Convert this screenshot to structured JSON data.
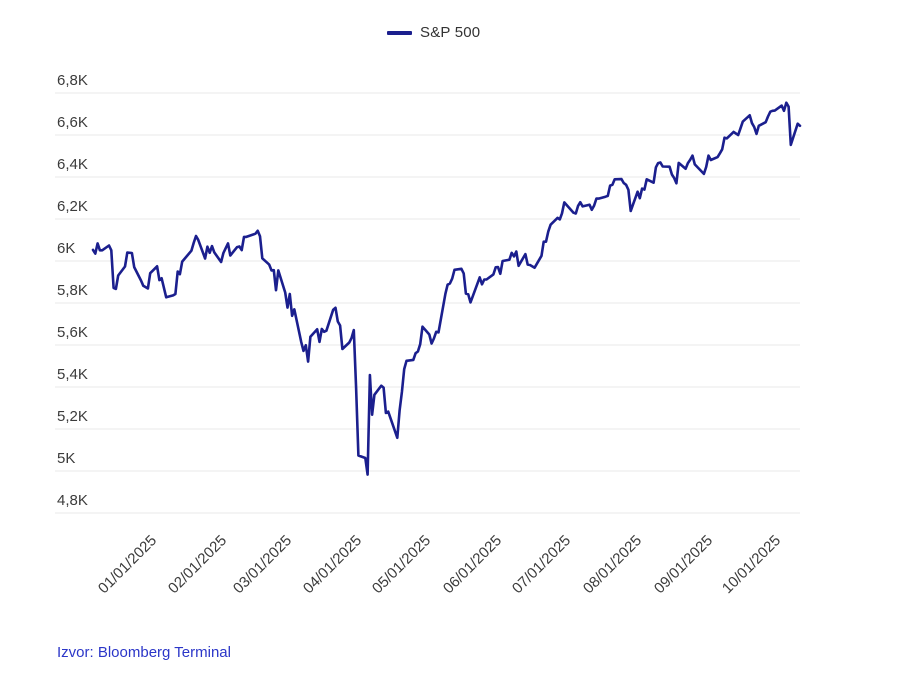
{
  "legend": {
    "label": "S&P 500",
    "line_color": "#1b1f8e"
  },
  "footer": {
    "source_text": "Izvor: Bloomberg Terminal",
    "color": "#2b36c8"
  },
  "colors": {
    "background": "#ffffff",
    "gridline": "#e8e8e8",
    "axis_text": "#3b3b3b"
  },
  "chart_data": {
    "type": "line",
    "title": "",
    "xlabel": "",
    "ylabel": "",
    "grid": "horizontal",
    "legend_position": "top-center",
    "ylim": [
      4800,
      6800
    ],
    "xlim": [
      "2024-12-09",
      "2025-10-14"
    ],
    "y_ticks": [
      {
        "label": "6,8K",
        "value": 6800
      },
      {
        "label": "6,6K",
        "value": 6600
      },
      {
        "label": "6,4K",
        "value": 6400
      },
      {
        "label": "6,2K",
        "value": 6200
      },
      {
        "label": "6K",
        "value": 6000
      },
      {
        "label": "5,8K",
        "value": 5800
      },
      {
        "label": "5,6K",
        "value": 5600
      },
      {
        "label": "5,4K",
        "value": 5400
      },
      {
        "label": "5,2K",
        "value": 5200
      },
      {
        "label": "5K",
        "value": 5000
      },
      {
        "label": "4,8K",
        "value": 4800
      }
    ],
    "x_ticks": [
      {
        "label": "01/01/2025",
        "date": "2025-01-01"
      },
      {
        "label": "02/01/2025",
        "date": "2025-02-01"
      },
      {
        "label": "03/01/2025",
        "date": "2025-03-01"
      },
      {
        "label": "04/01/2025",
        "date": "2025-04-01"
      },
      {
        "label": "05/01/2025",
        "date": "2025-05-01"
      },
      {
        "label": "06/01/2025",
        "date": "2025-06-01"
      },
      {
        "label": "07/01/2025",
        "date": "2025-07-01"
      },
      {
        "label": "08/01/2025",
        "date": "2025-08-01"
      },
      {
        "label": "09/01/2025",
        "date": "2025-09-01"
      },
      {
        "label": "10/01/2025",
        "date": "2025-10-01"
      }
    ],
    "series": [
      {
        "name": "S&P 500",
        "color": "#1b1f8e",
        "points": [
          [
            "2024-12-09",
            6053
          ],
          [
            "2024-12-10",
            6035
          ],
          [
            "2024-12-11",
            6084
          ],
          [
            "2024-12-12",
            6051
          ],
          [
            "2024-12-13",
            6051
          ],
          [
            "2024-12-16",
            6074
          ],
          [
            "2024-12-17",
            6051
          ],
          [
            "2024-12-18",
            5872
          ],
          [
            "2024-12-19",
            5867
          ],
          [
            "2024-12-20",
            5931
          ],
          [
            "2024-12-23",
            5974
          ],
          [
            "2024-12-24",
            6040
          ],
          [
            "2024-12-26",
            6038
          ],
          [
            "2024-12-27",
            5971
          ],
          [
            "2024-12-30",
            5907
          ],
          [
            "2024-12-31",
            5882
          ],
          [
            "2025-01-02",
            5869
          ],
          [
            "2025-01-03",
            5942
          ],
          [
            "2025-01-06",
            5975
          ],
          [
            "2025-01-07",
            5909
          ],
          [
            "2025-01-08",
            5918
          ],
          [
            "2025-01-10",
            5827
          ],
          [
            "2025-01-13",
            5836
          ],
          [
            "2025-01-14",
            5843
          ],
          [
            "2025-01-15",
            5950
          ],
          [
            "2025-01-16",
            5937
          ],
          [
            "2025-01-17",
            5997
          ],
          [
            "2025-01-21",
            6049
          ],
          [
            "2025-01-22",
            6086
          ],
          [
            "2025-01-23",
            6119
          ],
          [
            "2025-01-24",
            6101
          ],
          [
            "2025-01-27",
            6012
          ],
          [
            "2025-01-28",
            6068
          ],
          [
            "2025-01-29",
            6039
          ],
          [
            "2025-01-30",
            6071
          ],
          [
            "2025-01-31",
            6041
          ],
          [
            "2025-02-03",
            5995
          ],
          [
            "2025-02-04",
            6038
          ],
          [
            "2025-02-05",
            6061
          ],
          [
            "2025-02-06",
            6084
          ],
          [
            "2025-02-07",
            6026
          ],
          [
            "2025-02-10",
            6066
          ],
          [
            "2025-02-11",
            6069
          ],
          [
            "2025-02-12",
            6052
          ],
          [
            "2025-02-13",
            6115
          ],
          [
            "2025-02-14",
            6115
          ],
          [
            "2025-02-18",
            6130
          ],
          [
            "2025-02-19",
            6144
          ],
          [
            "2025-02-20",
            6118
          ],
          [
            "2025-02-21",
            6013
          ],
          [
            "2025-02-24",
            5983
          ],
          [
            "2025-02-25",
            5955
          ],
          [
            "2025-02-26",
            5956
          ],
          [
            "2025-02-27",
            5861
          ],
          [
            "2025-02-28",
            5955
          ],
          [
            "2025-03-03",
            5850
          ],
          [
            "2025-03-04",
            5778
          ],
          [
            "2025-03-05",
            5843
          ],
          [
            "2025-03-06",
            5739
          ],
          [
            "2025-03-07",
            5770
          ],
          [
            "2025-03-10",
            5615
          ],
          [
            "2025-03-11",
            5572
          ],
          [
            "2025-03-12",
            5599
          ],
          [
            "2025-03-13",
            5521
          ],
          [
            "2025-03-14",
            5639
          ],
          [
            "2025-03-17",
            5675
          ],
          [
            "2025-03-18",
            5615
          ],
          [
            "2025-03-19",
            5676
          ],
          [
            "2025-03-20",
            5663
          ],
          [
            "2025-03-21",
            5668
          ],
          [
            "2025-03-24",
            5768
          ],
          [
            "2025-03-25",
            5777
          ],
          [
            "2025-03-26",
            5712
          ],
          [
            "2025-03-27",
            5693
          ],
          [
            "2025-03-28",
            5581
          ],
          [
            "2025-03-31",
            5612
          ],
          [
            "2025-04-01",
            5633
          ],
          [
            "2025-04-02",
            5671
          ],
          [
            "2025-04-03",
            5396
          ],
          [
            "2025-04-04",
            5074
          ],
          [
            "2025-04-07",
            5062
          ],
          [
            "2025-04-08",
            4983
          ],
          [
            "2025-04-09",
            5457
          ],
          [
            "2025-04-10",
            5268
          ],
          [
            "2025-04-11",
            5363
          ],
          [
            "2025-04-14",
            5406
          ],
          [
            "2025-04-15",
            5397
          ],
          [
            "2025-04-16",
            5276
          ],
          [
            "2025-04-17",
            5283
          ],
          [
            "2025-04-21",
            5158
          ],
          [
            "2025-04-22",
            5288
          ],
          [
            "2025-04-23",
            5376
          ],
          [
            "2025-04-24",
            5485
          ],
          [
            "2025-04-25",
            5525
          ],
          [
            "2025-04-28",
            5529
          ],
          [
            "2025-04-29",
            5561
          ],
          [
            "2025-04-30",
            5569
          ],
          [
            "2025-05-01",
            5604
          ],
          [
            "2025-05-02",
            5687
          ],
          [
            "2025-05-05",
            5650
          ],
          [
            "2025-05-06",
            5607
          ],
          [
            "2025-05-07",
            5631
          ],
          [
            "2025-05-08",
            5663
          ],
          [
            "2025-05-09",
            5660
          ],
          [
            "2025-05-12",
            5844
          ],
          [
            "2025-05-13",
            5887
          ],
          [
            "2025-05-14",
            5893
          ],
          [
            "2025-05-15",
            5916
          ],
          [
            "2025-05-16",
            5958
          ],
          [
            "2025-05-19",
            5963
          ],
          [
            "2025-05-20",
            5941
          ],
          [
            "2025-05-21",
            5845
          ],
          [
            "2025-05-22",
            5842
          ],
          [
            "2025-05-23",
            5803
          ],
          [
            "2025-05-27",
            5922
          ],
          [
            "2025-05-28",
            5889
          ],
          [
            "2025-05-29",
            5912
          ],
          [
            "2025-05-30",
            5912
          ],
          [
            "2025-06-02",
            5936
          ],
          [
            "2025-06-03",
            5970
          ],
          [
            "2025-06-04",
            5971
          ],
          [
            "2025-06-05",
            5939
          ],
          [
            "2025-06-06",
            6000
          ],
          [
            "2025-06-09",
            6006
          ],
          [
            "2025-06-10",
            6039
          ],
          [
            "2025-06-11",
            6022
          ],
          [
            "2025-06-12",
            6045
          ],
          [
            "2025-06-13",
            5977
          ],
          [
            "2025-06-16",
            6033
          ],
          [
            "2025-06-17",
            5983
          ],
          [
            "2025-06-18",
            5981
          ],
          [
            "2025-06-20",
            5968
          ],
          [
            "2025-06-23",
            6025
          ],
          [
            "2025-06-24",
            6092
          ],
          [
            "2025-06-25",
            6092
          ],
          [
            "2025-06-26",
            6141
          ],
          [
            "2025-06-27",
            6173
          ],
          [
            "2025-06-30",
            6205
          ],
          [
            "2025-07-01",
            6198
          ],
          [
            "2025-07-02",
            6227
          ],
          [
            "2025-07-03",
            6279
          ],
          [
            "2025-07-07",
            6230
          ],
          [
            "2025-07-08",
            6226
          ],
          [
            "2025-07-09",
            6263
          ],
          [
            "2025-07-10",
            6280
          ],
          [
            "2025-07-11",
            6260
          ],
          [
            "2025-07-14",
            6268
          ],
          [
            "2025-07-15",
            6244
          ],
          [
            "2025-07-16",
            6264
          ],
          [
            "2025-07-17",
            6297
          ],
          [
            "2025-07-18",
            6297
          ],
          [
            "2025-07-21",
            6306
          ],
          [
            "2025-07-22",
            6310
          ],
          [
            "2025-07-23",
            6359
          ],
          [
            "2025-07-24",
            6363
          ],
          [
            "2025-07-25",
            6389
          ],
          [
            "2025-07-28",
            6390
          ],
          [
            "2025-07-29",
            6371
          ],
          [
            "2025-07-30",
            6363
          ],
          [
            "2025-07-31",
            6339
          ],
          [
            "2025-08-01",
            6238
          ],
          [
            "2025-08-04",
            6330
          ],
          [
            "2025-08-05",
            6299
          ],
          [
            "2025-08-06",
            6345
          ],
          [
            "2025-08-07",
            6340
          ],
          [
            "2025-08-08",
            6389
          ],
          [
            "2025-08-11",
            6373
          ],
          [
            "2025-08-12",
            6446
          ],
          [
            "2025-08-13",
            6466
          ],
          [
            "2025-08-14",
            6469
          ],
          [
            "2025-08-15",
            6450
          ],
          [
            "2025-08-18",
            6449
          ],
          [
            "2025-08-19",
            6412
          ],
          [
            "2025-08-20",
            6395
          ],
          [
            "2025-08-21",
            6370
          ],
          [
            "2025-08-22",
            6467
          ],
          [
            "2025-08-25",
            6439
          ],
          [
            "2025-08-26",
            6466
          ],
          [
            "2025-08-27",
            6482
          ],
          [
            "2025-08-28",
            6502
          ],
          [
            "2025-08-29",
            6460
          ],
          [
            "2025-09-02",
            6415
          ],
          [
            "2025-09-03",
            6448
          ],
          [
            "2025-09-04",
            6502
          ],
          [
            "2025-09-05",
            6481
          ],
          [
            "2025-09-08",
            6495
          ],
          [
            "2025-09-09",
            6513
          ],
          [
            "2025-09-10",
            6532
          ],
          [
            "2025-09-11",
            6587
          ],
          [
            "2025-09-12",
            6584
          ],
          [
            "2025-09-15",
            6615
          ],
          [
            "2025-09-16",
            6607
          ],
          [
            "2025-09-17",
            6600
          ],
          [
            "2025-09-18",
            6632
          ],
          [
            "2025-09-19",
            6664
          ],
          [
            "2025-09-22",
            6694
          ],
          [
            "2025-09-23",
            6656
          ],
          [
            "2025-09-24",
            6638
          ],
          [
            "2025-09-25",
            6605
          ],
          [
            "2025-09-26",
            6644
          ],
          [
            "2025-09-29",
            6661
          ],
          [
            "2025-09-30",
            6688
          ],
          [
            "2025-10-01",
            6711
          ],
          [
            "2025-10-02",
            6715
          ],
          [
            "2025-10-03",
            6716
          ],
          [
            "2025-10-06",
            6740
          ],
          [
            "2025-10-07",
            6715
          ],
          [
            "2025-10-08",
            6754
          ],
          [
            "2025-10-09",
            6735
          ],
          [
            "2025-10-10",
            6553
          ],
          [
            "2025-10-13",
            6654
          ],
          [
            "2025-10-14",
            6644
          ]
        ]
      }
    ]
  }
}
